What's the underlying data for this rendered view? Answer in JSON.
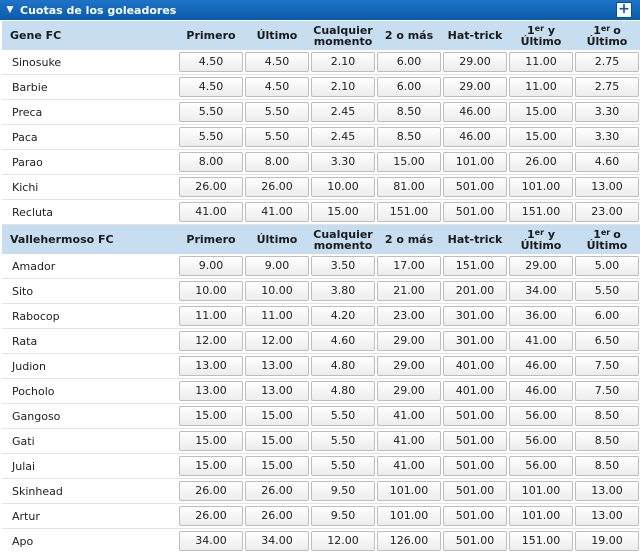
{
  "panel": {
    "title": "Cuotas de los goleadores",
    "plus_label": "+"
  },
  "columns": [
    "Primero",
    "Último",
    "Cualquier momento",
    "2 o más",
    "Hat-trick"
  ],
  "col_first_last": {
    "sup": "er",
    "text": " y Último"
  },
  "col_first_last_only": {
    "sup": "er",
    "prefix": "1",
    "text": "o Último"
  },
  "teams": [
    {
      "name": "Gene FC",
      "players": [
        {
          "name": "Sinosuke",
          "odds": [
            "4.50",
            "4.50",
            "2.10",
            "6.00",
            "29.00",
            "11.00",
            "2.75"
          ]
        },
        {
          "name": "Barbie",
          "odds": [
            "4.50",
            "4.50",
            "2.10",
            "6.00",
            "29.00",
            "11.00",
            "2.75"
          ]
        },
        {
          "name": "Preca",
          "odds": [
            "5.50",
            "5.50",
            "2.45",
            "8.50",
            "46.00",
            "15.00",
            "3.30"
          ]
        },
        {
          "name": "Paca",
          "odds": [
            "5.50",
            "5.50",
            "2.45",
            "8.50",
            "46.00",
            "15.00",
            "3.30"
          ]
        },
        {
          "name": "Parao",
          "odds": [
            "8.00",
            "8.00",
            "3.30",
            "15.00",
            "101.00",
            "26.00",
            "4.60"
          ]
        },
        {
          "name": "Kichi",
          "odds": [
            "26.00",
            "26.00",
            "10.00",
            "81.00",
            "501.00",
            "101.00",
            "13.00"
          ]
        },
        {
          "name": "Recluta",
          "odds": [
            "41.00",
            "41.00",
            "15.00",
            "151.00",
            "501.00",
            "151.00",
            "23.00"
          ]
        }
      ]
    },
    {
      "name": "Vallehermoso FC",
      "players": [
        {
          "name": "Amador",
          "odds": [
            "9.00",
            "9.00",
            "3.50",
            "17.00",
            "151.00",
            "29.00",
            "5.00"
          ]
        },
        {
          "name": "Sito",
          "odds": [
            "10.00",
            "10.00",
            "3.80",
            "21.00",
            "201.00",
            "34.00",
            "5.50"
          ]
        },
        {
          "name": "Rabocop",
          "odds": [
            "11.00",
            "11.00",
            "4.20",
            "23.00",
            "301.00",
            "36.00",
            "6.00"
          ]
        },
        {
          "name": "Rata",
          "odds": [
            "12.00",
            "12.00",
            "4.60",
            "29.00",
            "301.00",
            "41.00",
            "6.50"
          ]
        },
        {
          "name": "Judion",
          "odds": [
            "13.00",
            "13.00",
            "4.80",
            "29.00",
            "401.00",
            "46.00",
            "7.50"
          ]
        },
        {
          "name": "Pocholo",
          "odds": [
            "13.00",
            "13.00",
            "4.80",
            "29.00",
            "401.00",
            "46.00",
            "7.50"
          ]
        },
        {
          "name": "Gangoso",
          "odds": [
            "15.00",
            "15.00",
            "5.50",
            "41.00",
            "501.00",
            "56.00",
            "8.50"
          ]
        },
        {
          "name": "Gati",
          "odds": [
            "15.00",
            "15.00",
            "5.50",
            "41.00",
            "501.00",
            "56.00",
            "8.50"
          ]
        },
        {
          "name": "Julai",
          "odds": [
            "15.00",
            "15.00",
            "5.50",
            "41.00",
            "501.00",
            "56.00",
            "8.50"
          ]
        },
        {
          "name": "Skinhead",
          "odds": [
            "26.00",
            "26.00",
            "9.50",
            "101.00",
            "501.00",
            "101.00",
            "13.00"
          ]
        },
        {
          "name": "Artur",
          "odds": [
            "26.00",
            "26.00",
            "9.50",
            "101.00",
            "501.00",
            "101.00",
            "13.00"
          ]
        },
        {
          "name": "Apo",
          "odds": [
            "34.00",
            "34.00",
            "12.00",
            "126.00",
            "501.00",
            "151.00",
            "19.00"
          ]
        }
      ]
    }
  ]
}
